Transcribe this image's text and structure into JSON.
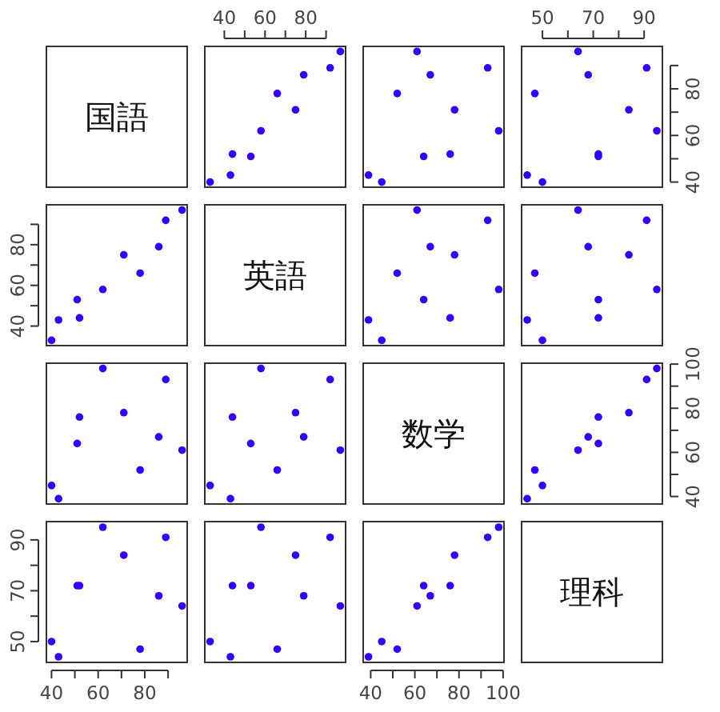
{
  "chart_data": [
    {
      "type": "other",
      "title": "国語"
    },
    {
      "type": "scatter",
      "x": [
        33,
        43,
        53,
        44,
        58,
        75,
        66,
        79,
        92,
        97
      ],
      "values": [
        40,
        43,
        51,
        52,
        62,
        71,
        78,
        86,
        89,
        96
      ],
      "color": "#3300ff",
      "marker": "circle",
      "xlim": [
        30.4,
        99.6
      ],
      "ylim": [
        37.8,
        98.2
      ],
      "xticks": [
        40,
        {
          "value": 50,
          "label": null
        },
        60,
        {
          "value": 70,
          "label": null
        },
        80,
        {
          "value": 90,
          "label": null
        }
      ],
      "tick_labels": "x"
    },
    {
      "type": "scatter",
      "x": [
        45,
        39,
        64,
        76,
        98,
        78,
        52,
        67,
        93,
        61
      ],
      "values": [
        40,
        43,
        51,
        52,
        62,
        71,
        78,
        86,
        89,
        96
      ],
      "color": "#3300ff",
      "marker": "circle",
      "xlim": [
        36.6,
        100.4
      ],
      "ylim": [
        37.8,
        98.2
      ],
      "tick_labels": false
    },
    {
      "type": "scatter",
      "x": [
        50,
        44,
        72,
        72,
        95,
        84,
        47,
        68,
        91,
        64
      ],
      "values": [
        40,
        43,
        51,
        52,
        62,
        71,
        78,
        86,
        89,
        96
      ],
      "color": "#3300ff",
      "marker": "circle",
      "xlim": [
        41.8,
        97.2
      ],
      "ylim": [
        37.8,
        98.2
      ],
      "xticks": [
        50,
        {
          "value": 60,
          "label": null
        },
        70,
        {
          "value": 80,
          "label": null
        },
        90
      ],
      "yticks": [
        40,
        {
          "value": 50,
          "label": null
        },
        60,
        {
          "value": 70,
          "label": null
        },
        80,
        {
          "value": 90,
          "label": null
        }
      ]
    },
    {
      "type": "scatter",
      "x": [
        40,
        43,
        51,
        52,
        62,
        71,
        78,
        86,
        89,
        96
      ],
      "values": [
        33,
        43,
        53,
        44,
        58,
        75,
        66,
        79,
        92,
        97
      ],
      "color": "#3300ff",
      "marker": "circle",
      "xlim": [
        37.8,
        98.2
      ],
      "ylim": [
        30.4,
        99.6
      ],
      "yticks": [
        40,
        {
          "value": 50,
          "label": null
        },
        60,
        {
          "value": 70,
          "label": null
        },
        80,
        {
          "value": 90,
          "label": null
        }
      ],
      "tick_labels": "y"
    },
    {
      "type": "other",
      "title": "英語"
    },
    {
      "type": "scatter",
      "x": [
        45,
        39,
        64,
        76,
        98,
        78,
        52,
        67,
        93,
        61
      ],
      "values": [
        33,
        43,
        53,
        44,
        58,
        75,
        66,
        79,
        92,
        97
      ],
      "color": "#3300ff",
      "marker": "circle",
      "xlim": [
        36.6,
        100.4
      ],
      "ylim": [
        30.4,
        99.6
      ],
      "tick_labels": false
    },
    {
      "type": "scatter",
      "x": [
        50,
        44,
        72,
        72,
        95,
        84,
        47,
        68,
        91,
        64
      ],
      "values": [
        33,
        43,
        53,
        44,
        58,
        75,
        66,
        79,
        92,
        97
      ],
      "color": "#3300ff",
      "marker": "circle",
      "xlim": [
        41.8,
        97.2
      ],
      "ylim": [
        30.4,
        99.6
      ],
      "tick_labels": false
    },
    {
      "type": "scatter",
      "x": [
        40,
        43,
        51,
        52,
        62,
        71,
        78,
        86,
        89,
        96
      ],
      "values": [
        45,
        39,
        64,
        76,
        98,
        78,
        52,
        67,
        93,
        61
      ],
      "color": "#3300ff",
      "marker": "circle",
      "xlim": [
        37.8,
        98.2
      ],
      "ylim": [
        36.6,
        100.4
      ],
      "tick_labels": false
    },
    {
      "type": "scatter",
      "x": [
        33,
        43,
        53,
        44,
        58,
        75,
        66,
        79,
        92,
        97
      ],
      "values": [
        45,
        39,
        64,
        76,
        98,
        78,
        52,
        67,
        93,
        61
      ],
      "color": "#3300ff",
      "marker": "circle",
      "xlim": [
        30.4,
        99.6
      ],
      "ylim": [
        36.6,
        100.4
      ],
      "tick_labels": false
    },
    {
      "type": "other",
      "title": "数学"
    },
    {
      "type": "scatter",
      "x": [
        50,
        44,
        72,
        72,
        95,
        84,
        47,
        68,
        91,
        64
      ],
      "values": [
        45,
        39,
        64,
        76,
        98,
        78,
        52,
        67,
        93,
        61
      ],
      "color": "#3300ff",
      "marker": "circle",
      "xlim": [
        41.8,
        97.2
      ],
      "ylim": [
        36.6,
        100.4
      ],
      "yticks": [
        40,
        {
          "value": 50,
          "label": null
        },
        60,
        {
          "value": 70,
          "label": null
        },
        80,
        {
          "value": 90,
          "label": null
        },
        100
      ],
      "tick_labels": "y"
    },
    {
      "type": "scatter",
      "x": [
        40,
        43,
        51,
        52,
        62,
        71,
        78,
        86,
        89,
        96
      ],
      "values": [
        50,
        44,
        72,
        72,
        95,
        84,
        47,
        68,
        91,
        64
      ],
      "color": "#3300ff",
      "marker": "circle",
      "xlim": [
        37.8,
        98.2
      ],
      "ylim": [
        41.8,
        97.2
      ],
      "xticks": [
        40,
        {
          "value": 50,
          "label": null
        },
        60,
        {
          "value": 70,
          "label": null
        },
        80,
        {
          "value": 90,
          "label": null
        }
      ],
      "yticks": [
        50,
        {
          "value": 60,
          "label": null
        },
        70,
        {
          "value": 80,
          "label": null
        },
        90
      ]
    },
    {
      "type": "scatter",
      "x": [
        33,
        43,
        53,
        44,
        58,
        75,
        66,
        79,
        92,
        97
      ],
      "values": [
        50,
        44,
        72,
        72,
        95,
        84,
        47,
        68,
        91,
        64
      ],
      "color": "#3300ff",
      "marker": "circle",
      "xlim": [
        30.4,
        99.6
      ],
      "ylim": [
        41.8,
        97.2
      ],
      "tick_labels": false
    },
    {
      "type": "scatter",
      "x": [
        45,
        39,
        64,
        76,
        98,
        78,
        52,
        67,
        93,
        61
      ],
      "values": [
        50,
        44,
        72,
        72,
        95,
        84,
        47,
        68,
        91,
        64
      ],
      "color": "#3300ff",
      "marker": "circle",
      "xlim": [
        36.6,
        100.4
      ],
      "ylim": [
        41.8,
        97.2
      ],
      "xticks": [
        40,
        {
          "value": 50,
          "label": null
        },
        60,
        {
          "value": 70,
          "label": null
        },
        80,
        {
          "value": 90,
          "label": null
        },
        100
      ],
      "tick_labels": "x"
    },
    {
      "type": "other",
      "title": "理科"
    }
  ]
}
